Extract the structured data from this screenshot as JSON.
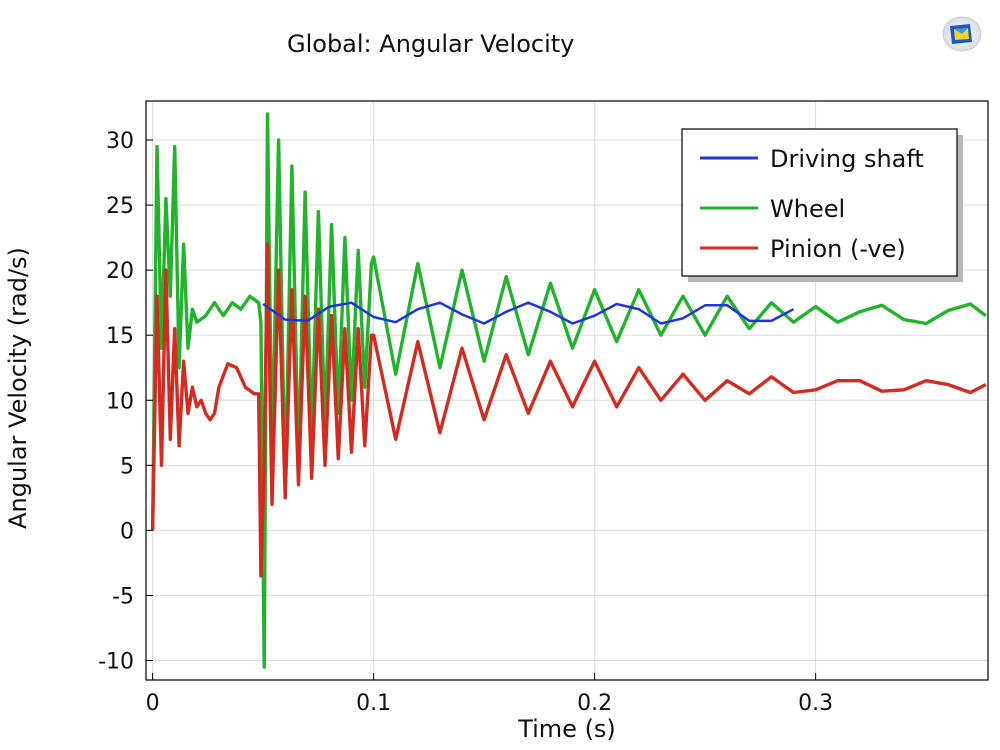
{
  "chart_data": {
    "type": "line",
    "title": "Global: Angular Velocity",
    "xlabel": "Time (s)",
    "ylabel": "Angular Velocity (rad/s)",
    "xlim": [
      -0.003,
      0.378
    ],
    "ylim": [
      -11.5,
      33
    ],
    "grid": true,
    "x_ticks": [
      0,
      0.1,
      0.2,
      0.3
    ],
    "x_tick_labels": [
      "0",
      "0.1",
      "0.2",
      "0.3"
    ],
    "y_ticks": [
      -10,
      -5,
      0,
      5,
      10,
      15,
      20,
      25,
      30
    ],
    "y_tick_labels": [
      "-10",
      "-5",
      "0",
      "5",
      "10",
      "15",
      "20",
      "25",
      "30"
    ],
    "legend_position": "top-right",
    "series": [
      {
        "name": "Driving shaft",
        "color": "#1f35d8",
        "x": [
          0.05,
          0.06,
          0.07,
          0.08,
          0.09,
          0.1,
          0.11,
          0.12,
          0.13,
          0.14,
          0.15,
          0.16,
          0.17,
          0.18,
          0.19,
          0.2,
          0.21,
          0.22,
          0.23,
          0.24,
          0.25,
          0.26,
          0.27,
          0.28,
          0.29
        ],
        "y": [
          17.4,
          16.2,
          16.1,
          17.2,
          17.5,
          16.4,
          16.0,
          17.0,
          17.5,
          16.6,
          15.9,
          16.8,
          17.5,
          16.8,
          15.9,
          16.5,
          17.4,
          17.0,
          15.9,
          16.3,
          17.3,
          17.3,
          16.1,
          16.1,
          17.0
        ]
      },
      {
        "name": "Wheel",
        "color": "#22b32d",
        "x": [
          0,
          0.002,
          0.004,
          0.006,
          0.008,
          0.01,
          0.012,
          0.014,
          0.016,
          0.018,
          0.02,
          0.024,
          0.028,
          0.032,
          0.036,
          0.04,
          0.044,
          0.048,
          0.049,
          0.0505,
          0.052,
          0.054,
          0.057,
          0.06,
          0.063,
          0.066,
          0.069,
          0.072,
          0.075,
          0.078,
          0.081,
          0.084,
          0.087,
          0.09,
          0.093,
          0.096,
          0.099,
          0.1,
          0.11,
          0.12,
          0.13,
          0.14,
          0.15,
          0.16,
          0.17,
          0.18,
          0.19,
          0.2,
          0.21,
          0.22,
          0.23,
          0.24,
          0.25,
          0.26,
          0.27,
          0.28,
          0.29,
          0.3,
          0.31,
          0.32,
          0.33,
          0.34,
          0.35,
          0.36,
          0.37,
          0.377
        ],
        "y": [
          0,
          29.5,
          14,
          25.5,
          18,
          29.5,
          12.5,
          22,
          14,
          17,
          16,
          16.5,
          17.5,
          16.5,
          17.5,
          17,
          18,
          17.5,
          16,
          -10.5,
          32,
          5,
          30,
          3,
          28,
          5,
          26,
          7,
          24.5,
          8,
          23.5,
          9,
          22.5,
          10,
          21.5,
          11,
          20.5,
          21,
          12,
          20.5,
          12.5,
          20,
          13,
          19.5,
          13.5,
          19,
          14,
          18.5,
          14.5,
          18.5,
          15,
          18,
          15,
          18,
          15.5,
          17.5,
          16,
          17.2,
          16,
          16.8,
          17.3,
          16.2,
          15.9,
          16.9,
          17.4,
          16.5
        ]
      },
      {
        "name": "Pinion (-ve)",
        "color": "#d42a1f",
        "x": [
          0,
          0.002,
          0.004,
          0.006,
          0.008,
          0.01,
          0.012,
          0.014,
          0.016,
          0.018,
          0.02,
          0.022,
          0.024,
          0.026,
          0.028,
          0.03,
          0.034,
          0.038,
          0.042,
          0.046,
          0.048,
          0.049,
          0.0505,
          0.052,
          0.054,
          0.057,
          0.06,
          0.063,
          0.066,
          0.069,
          0.072,
          0.075,
          0.078,
          0.081,
          0.084,
          0.087,
          0.09,
          0.093,
          0.096,
          0.099,
          0.1,
          0.11,
          0.12,
          0.13,
          0.14,
          0.15,
          0.16,
          0.17,
          0.18,
          0.19,
          0.2,
          0.21,
          0.22,
          0.23,
          0.24,
          0.25,
          0.26,
          0.27,
          0.28,
          0.29,
          0.3,
          0.31,
          0.32,
          0.33,
          0.34,
          0.35,
          0.36,
          0.37,
          0.377
        ],
        "y": [
          0,
          18,
          5,
          20,
          7,
          15.5,
          6.5,
          13,
          9,
          11,
          9.5,
          10,
          9,
          8.5,
          9,
          11,
          12.8,
          12.5,
          11,
          10.5,
          10.5,
          -3.5,
          5,
          22,
          2,
          20,
          2.5,
          18.5,
          3.5,
          18,
          4,
          17,
          5,
          16.5,
          5.5,
          15.5,
          6,
          15.5,
          6.5,
          15,
          15,
          7,
          14.5,
          7.5,
          14,
          8.5,
          13.5,
          9,
          13,
          9.5,
          13,
          9.5,
          12.5,
          10,
          12,
          10,
          11.5,
          10.5,
          11.8,
          10.6,
          10.8,
          11.5,
          11.5,
          10.7,
          10.8,
          11.5,
          11.2,
          10.6,
          11.2
        ]
      }
    ]
  }
}
